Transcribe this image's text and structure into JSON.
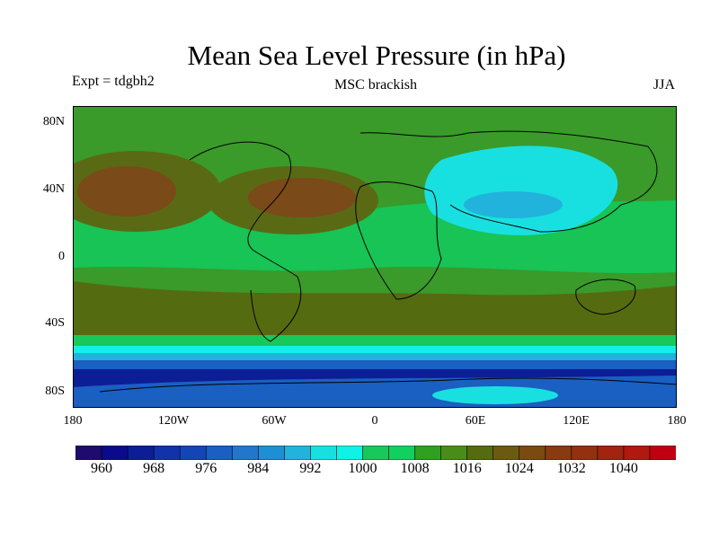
{
  "title": "Mean Sea Level Pressure (in hPa)",
  "experiment_label": "Expt = tdgbh2",
  "subtitle": "MSC brackish",
  "season": "JJA",
  "y_axis_labels": [
    "80N",
    "40N",
    "0",
    "40S",
    "80S"
  ],
  "x_axis_labels": [
    "180",
    "120W",
    "60W",
    "0",
    "60E",
    "120E",
    "180"
  ],
  "colorbar": {
    "labels": [
      "960",
      "968",
      "976",
      "984",
      "992",
      "1000",
      "1008",
      "1016",
      "1024",
      "1032",
      "1040"
    ],
    "colors": [
      "#1f0a6e",
      "#0a0a8c",
      "#0b1e96",
      "#1133aa",
      "#1545b5",
      "#1a5fc2",
      "#2277cc",
      "#1e8fd4",
      "#22b3dc",
      "#19e0e0",
      "#11f2e6",
      "#18c85a",
      "#11d060",
      "#2fa020",
      "#4a8c1a",
      "#556b10",
      "#6b5a10",
      "#7a4a10",
      "#883a10",
      "#923010",
      "#a02410",
      "#b01810",
      "#c00010"
    ]
  }
}
